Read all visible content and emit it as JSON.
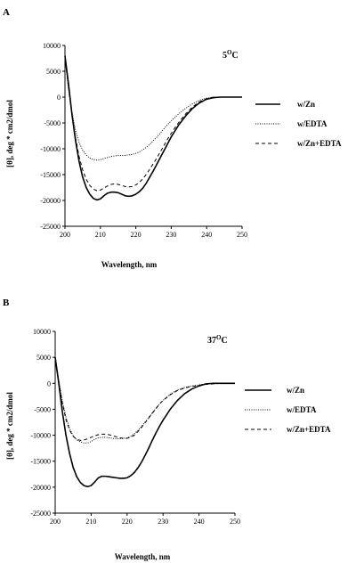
{
  "figure": {
    "panels": [
      {
        "letter": "A",
        "temperature_label": "5",
        "temperature_superscript": "O",
        "temperature_unit": "C"
      },
      {
        "letter": "B",
        "temperature_label": "37",
        "temperature_superscript": "O",
        "temperature_unit": "C"
      }
    ]
  },
  "chart_data": [
    {
      "type": "line",
      "panel": "A",
      "title": "",
      "xlabel": "Wavelength,  nm",
      "ylabel": "[θ], deg * cm2/dmol",
      "xlim": [
        200,
        250
      ],
      "ylim": [
        -25000,
        10000
      ],
      "xticks": [
        200,
        210,
        220,
        230,
        240,
        250
      ],
      "yticks": [
        10000,
        5000,
        0,
        -5000,
        -10000,
        -15000,
        -20000,
        -25000
      ],
      "grid": false,
      "legend_position": "right",
      "series": [
        {
          "name": "w/Zn",
          "style": "solid",
          "x": [
            200,
            201,
            202,
            203,
            204,
            205,
            206,
            207,
            208,
            209,
            210,
            211,
            212,
            213,
            214,
            215,
            216,
            217,
            218,
            219,
            220,
            221,
            222,
            223,
            224,
            225,
            226,
            227,
            228,
            229,
            230,
            232,
            234,
            236,
            238,
            240,
            242,
            244,
            246,
            248,
            250
          ],
          "values": [
            8000,
            2500,
            -3500,
            -8500,
            -12500,
            -15500,
            -17500,
            -18800,
            -19600,
            -19900,
            -19700,
            -19100,
            -18600,
            -18400,
            -18400,
            -18500,
            -18800,
            -19100,
            -19200,
            -19100,
            -18800,
            -18300,
            -17600,
            -16600,
            -15400,
            -14200,
            -12900,
            -11600,
            -10300,
            -9000,
            -7700,
            -5500,
            -3700,
            -2200,
            -1100,
            -400,
            -100,
            0,
            0,
            0,
            0
          ]
        },
        {
          "name": "w/EDTA",
          "style": "dotted",
          "x": [
            200,
            201,
            202,
            203,
            204,
            205,
            206,
            207,
            208,
            209,
            210,
            211,
            212,
            213,
            214,
            215,
            216,
            217,
            218,
            219,
            220,
            221,
            222,
            223,
            224,
            225,
            226,
            227,
            228,
            229,
            230,
            232,
            234,
            236,
            238,
            240,
            242,
            244,
            246,
            248,
            250
          ],
          "values": [
            7500,
            1500,
            -3000,
            -6500,
            -8800,
            -10300,
            -11200,
            -11800,
            -12100,
            -12200,
            -12100,
            -11900,
            -11700,
            -11500,
            -11400,
            -11300,
            -11300,
            -11300,
            -11200,
            -11100,
            -10900,
            -10600,
            -10200,
            -9700,
            -9100,
            -8400,
            -7700,
            -6900,
            -6100,
            -5300,
            -4600,
            -3300,
            -2200,
            -1300,
            -600,
            -200,
            0,
            0,
            0,
            0,
            0
          ]
        },
        {
          "name": "w/Zn+EDTA",
          "style": "dashed",
          "x": [
            200,
            201,
            202,
            203,
            204,
            205,
            206,
            207,
            208,
            209,
            210,
            211,
            212,
            213,
            214,
            215,
            216,
            217,
            218,
            219,
            220,
            221,
            222,
            223,
            224,
            225,
            226,
            227,
            228,
            229,
            230,
            232,
            234,
            236,
            238,
            240,
            242,
            244,
            246,
            248,
            250
          ],
          "values": [
            7800,
            2000,
            -3500,
            -8000,
            -11500,
            -14100,
            -15900,
            -17100,
            -17800,
            -18100,
            -18000,
            -17600,
            -17200,
            -16900,
            -16800,
            -16900,
            -17100,
            -17300,
            -17400,
            -17300,
            -17000,
            -16500,
            -15800,
            -14900,
            -13900,
            -12800,
            -11700,
            -10500,
            -9300,
            -8100,
            -7000,
            -5000,
            -3300,
            -1900,
            -900,
            -300,
            0,
            0,
            0,
            0,
            0
          ]
        }
      ]
    },
    {
      "type": "line",
      "panel": "B",
      "title": "",
      "xlabel": "Wavelength,  nm",
      "ylabel": "[θ], deg * cm2/dmol",
      "xlim": [
        200,
        250
      ],
      "ylim": [
        -25000,
        10000
      ],
      "xticks": [
        200,
        210,
        220,
        230,
        240,
        250
      ],
      "yticks": [
        10000,
        5000,
        0,
        -5000,
        -10000,
        -15000,
        -20000,
        -25000
      ],
      "grid": false,
      "legend_position": "right",
      "series": [
        {
          "name": "w/Zn",
          "style": "solid",
          "x": [
            200,
            201,
            202,
            203,
            204,
            205,
            206,
            207,
            208,
            209,
            210,
            211,
            212,
            213,
            214,
            215,
            216,
            217,
            218,
            219,
            220,
            221,
            222,
            223,
            224,
            225,
            226,
            227,
            228,
            229,
            230,
            232,
            234,
            236,
            238,
            240,
            242,
            244,
            246,
            248,
            250
          ],
          "values": [
            5000,
            0,
            -5500,
            -10000,
            -13500,
            -16200,
            -18000,
            -19100,
            -19700,
            -19900,
            -19700,
            -19000,
            -18200,
            -17900,
            -17900,
            -18000,
            -18100,
            -18200,
            -18300,
            -18300,
            -18200,
            -17800,
            -17200,
            -16300,
            -15200,
            -13900,
            -12500,
            -11000,
            -9600,
            -8300,
            -7100,
            -5000,
            -3300,
            -2000,
            -1100,
            -500,
            -100,
            0,
            0,
            0,
            0
          ]
        },
        {
          "name": "w/EDTA",
          "style": "dotted",
          "x": [
            200,
            201,
            202,
            203,
            204,
            205,
            206,
            207,
            208,
            209,
            210,
            211,
            212,
            213,
            214,
            215,
            216,
            217,
            218,
            219,
            220,
            221,
            222,
            223,
            224,
            225,
            226,
            227,
            228,
            229,
            230,
            232,
            234,
            236,
            238,
            240,
            242,
            244,
            246,
            248,
            250
          ],
          "values": [
            5000,
            500,
            -3500,
            -6500,
            -8700,
            -10100,
            -10900,
            -11300,
            -11500,
            -11500,
            -11200,
            -10800,
            -10500,
            -10400,
            -10400,
            -10500,
            -10600,
            -10700,
            -10700,
            -10600,
            -10500,
            -10200,
            -9700,
            -9100,
            -8300,
            -7500,
            -6600,
            -5700,
            -4800,
            -4000,
            -3300,
            -2100,
            -1300,
            -800,
            -500,
            -300,
            -100,
            0,
            0,
            0,
            0
          ]
        },
        {
          "name": "w/Zn+EDTA",
          "style": "dashed",
          "x": [
            200,
            201,
            202,
            203,
            204,
            205,
            206,
            207,
            208,
            209,
            210,
            211,
            212,
            213,
            214,
            215,
            216,
            217,
            218,
            219,
            220,
            221,
            222,
            223,
            224,
            225,
            226,
            227,
            228,
            229,
            230,
            232,
            234,
            236,
            238,
            240,
            242,
            244,
            246,
            248,
            250
          ],
          "values": [
            5000,
            300,
            -3800,
            -7000,
            -9000,
            -10200,
            -10800,
            -11000,
            -10900,
            -10700,
            -10400,
            -10100,
            -9900,
            -9800,
            -9800,
            -9900,
            -10100,
            -10300,
            -10500,
            -10600,
            -10600,
            -10400,
            -10000,
            -9300,
            -8500,
            -7600,
            -6700,
            -5800,
            -4900,
            -4000,
            -3300,
            -2200,
            -1400,
            -900,
            -600,
            -400,
            -200,
            -100,
            0,
            0,
            0
          ]
        }
      ]
    }
  ]
}
